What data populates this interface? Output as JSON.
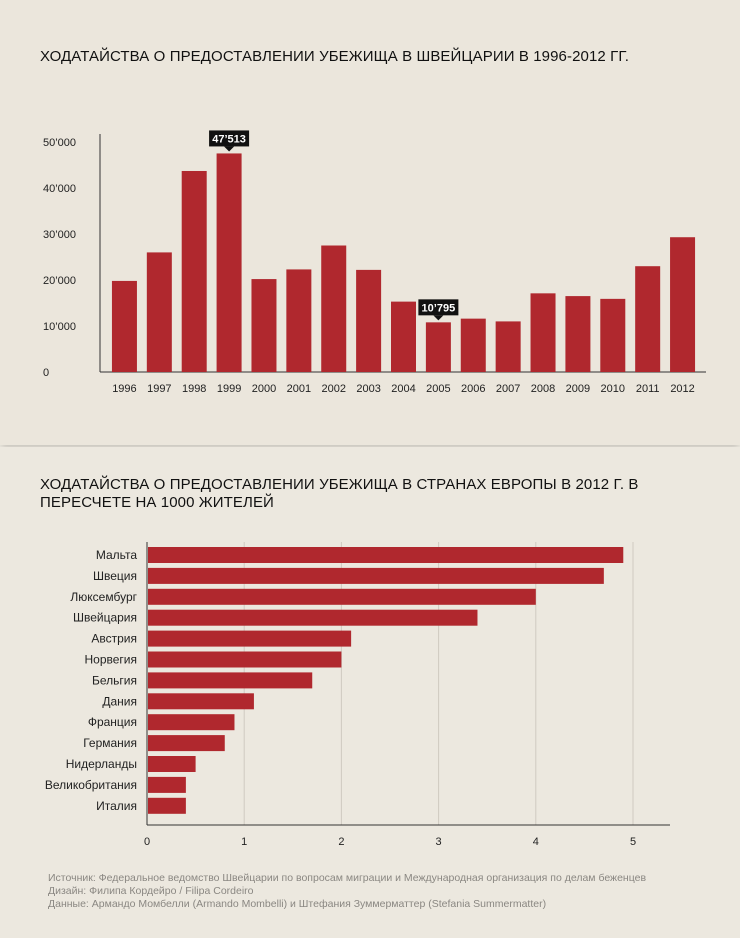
{
  "chart_data": [
    {
      "type": "bar",
      "title": "ХОДАТАЙСТВА О ПРЕДОСТАВЛЕНИИ УБЕЖИЩА В ШВЕЙЦАРИИ В 1996-2012 ГГ.",
      "categories": [
        "1996",
        "1997",
        "1998",
        "1999",
        "2000",
        "2001",
        "2002",
        "2003",
        "2004",
        "2005",
        "2006",
        "2007",
        "2008",
        "2009",
        "2010",
        "2011",
        "2012"
      ],
      "values": [
        19800,
        26000,
        43700,
        47513,
        20200,
        22300,
        27500,
        22200,
        15300,
        10795,
        11600,
        11000,
        17100,
        16500,
        15900,
        23000,
        29300
      ],
      "ylim": [
        0,
        50000
      ],
      "yticks": [
        0,
        10000,
        20000,
        30000,
        40000,
        50000
      ],
      "ytick_labels": [
        "0",
        "10’000",
        "20’000",
        "30’000",
        "40’000",
        "50’000"
      ],
      "bar_color": "#b0282e",
      "annotations": [
        {
          "category": "1999",
          "label": "47’513"
        },
        {
          "category": "2005",
          "label": "10’795"
        }
      ],
      "grid": false
    },
    {
      "type": "bar",
      "orientation": "horizontal",
      "title": "ХОДАТАЙСТВА О ПРЕДОСТАВЛЕНИИ УБЕЖИЩА В СТРАНАХ ЕВРОПЫ В 2012 Г. В ПЕРЕСЧЕТЕ НА 1000 ЖИТЕЛЕЙ",
      "categories": [
        "Мальта",
        "Швеция",
        "Люксембург",
        "Швейцария",
        "Австрия",
        "Норвегия",
        "Бельгия",
        "Дания",
        "Франция",
        "Германия",
        "Нидерланды",
        "Великобритания",
        "Италия"
      ],
      "values": [
        4.9,
        4.7,
        4.0,
        3.4,
        2.1,
        2.0,
        1.7,
        1.1,
        0.9,
        0.8,
        0.5,
        0.4,
        0.4
      ],
      "xlim": [
        0,
        5.4
      ],
      "xticks": [
        0,
        1,
        2,
        3,
        4,
        5
      ],
      "xtick_labels": [
        "0",
        "1",
        "2",
        "3",
        "4",
        "5"
      ],
      "bar_color": "#b0282e",
      "grid": true
    }
  ],
  "footer": {
    "source": "Источник: Федеральное ведомство Швейцарии по вопросам миграции и Международная организация по делам беженцев",
    "design": "Дизайн: Филипа Кордейро / Filipa Cordeiro",
    "data": "Данные: Армандо Момбелли (Armando Mombelli) и Штефания Зуммерматтер (Stefania Summermatter)"
  }
}
